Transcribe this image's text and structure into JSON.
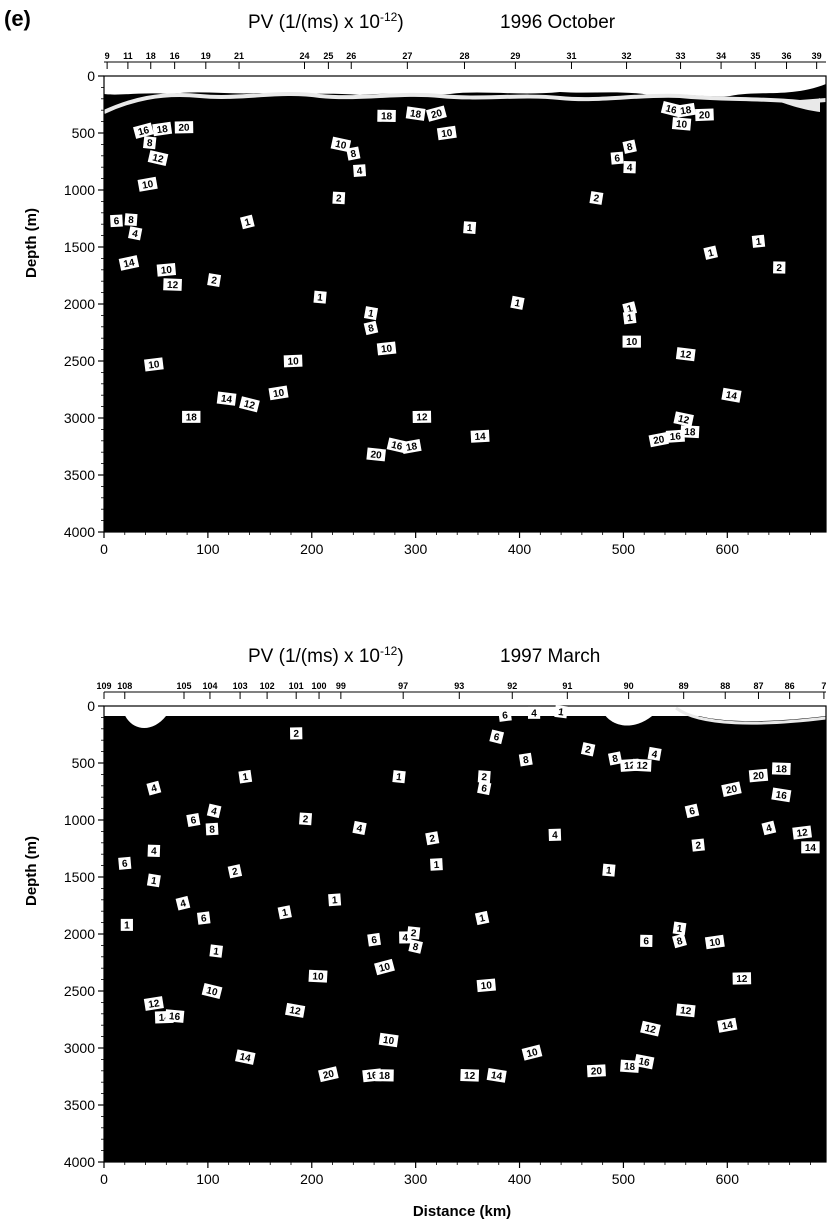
{
  "panel_label": "(e)",
  "colors": {
    "background": "#ffffff",
    "field": "#000000",
    "label_box": "#ffffff",
    "surface_band": "#e9e9e9"
  },
  "chart_data": [
    {
      "type": "contour",
      "title": "PV (1/(ms) x 10",
      "title_exponent": "-12",
      "title_close": ")",
      "subtitle": "1996 October",
      "xlabel": "",
      "ylabel": "Depth (m)",
      "xlim": [
        0,
        695
      ],
      "ylim": [
        4000,
        0
      ],
      "x_ticks": [
        0,
        100,
        200,
        300,
        400,
        500,
        600
      ],
      "y_ticks": [
        0,
        500,
        1000,
        1500,
        2000,
        2500,
        3000,
        3500,
        4000
      ],
      "stations": [
        {
          "label": "9",
          "x": 3
        },
        {
          "label": "11",
          "x": 23
        },
        {
          "label": "18",
          "x": 45
        },
        {
          "label": "16",
          "x": 68
        },
        {
          "label": "19",
          "x": 98
        },
        {
          "label": "21",
          "x": 130
        },
        {
          "label": "24",
          "x": 193
        },
        {
          "label": "25",
          "x": 216
        },
        {
          "label": "26",
          "x": 238
        },
        {
          "label": "27",
          "x": 292
        },
        {
          "label": "28",
          "x": 347
        },
        {
          "label": "29",
          "x": 396
        },
        {
          "label": "31",
          "x": 450
        },
        {
          "label": "32",
          "x": 503
        },
        {
          "label": "33",
          "x": 555
        },
        {
          "label": "34",
          "x": 594
        },
        {
          "label": "35",
          "x": 627
        },
        {
          "label": "36",
          "x": 657
        },
        {
          "label": "39",
          "x": 686
        }
      ],
      "contour_labels": [
        {
          "text": "16",
          "x": 38,
          "y": 480
        },
        {
          "text": "18",
          "x": 56,
          "y": 465
        },
        {
          "text": "20",
          "x": 77,
          "y": 450
        },
        {
          "text": "8",
          "x": 44,
          "y": 585
        },
        {
          "text": "12",
          "x": 52,
          "y": 720
        },
        {
          "text": "10",
          "x": 42,
          "y": 950
        },
        {
          "text": "6",
          "x": 12,
          "y": 1270
        },
        {
          "text": "8",
          "x": 26,
          "y": 1260
        },
        {
          "text": "4",
          "x": 30,
          "y": 1380
        },
        {
          "text": "14",
          "x": 24,
          "y": 1640
        },
        {
          "text": "10",
          "x": 60,
          "y": 1700
        },
        {
          "text": "12",
          "x": 66,
          "y": 1830
        },
        {
          "text": "2",
          "x": 106,
          "y": 1790
        },
        {
          "text": "1",
          "x": 138,
          "y": 1280
        },
        {
          "text": "10",
          "x": 48,
          "y": 2530
        },
        {
          "text": "18",
          "x": 84,
          "y": 2990
        },
        {
          "text": "14",
          "x": 118,
          "y": 2830
        },
        {
          "text": "12",
          "x": 140,
          "y": 2880
        },
        {
          "text": "10",
          "x": 168,
          "y": 2780
        },
        {
          "text": "10",
          "x": 182,
          "y": 2500
        },
        {
          "text": "1",
          "x": 208,
          "y": 1940
        },
        {
          "text": "10",
          "x": 228,
          "y": 600
        },
        {
          "text": "8",
          "x": 240,
          "y": 680
        },
        {
          "text": "4",
          "x": 246,
          "y": 830
        },
        {
          "text": "2",
          "x": 226,
          "y": 1070
        },
        {
          "text": "1",
          "x": 257,
          "y": 2080
        },
        {
          "text": "8",
          "x": 257,
          "y": 2210
        },
        {
          "text": "10",
          "x": 272,
          "y": 2390
        },
        {
          "text": "18",
          "x": 272,
          "y": 350
        },
        {
          "text": "18",
          "x": 300,
          "y": 330
        },
        {
          "text": "20",
          "x": 320,
          "y": 330
        },
        {
          "text": "10",
          "x": 330,
          "y": 500
        },
        {
          "text": "12",
          "x": 306,
          "y": 2990
        },
        {
          "text": "20",
          "x": 262,
          "y": 3320
        },
        {
          "text": "16",
          "x": 282,
          "y": 3240
        },
        {
          "text": "18",
          "x": 296,
          "y": 3250
        },
        {
          "text": "14",
          "x": 362,
          "y": 3160
        },
        {
          "text": "1",
          "x": 352,
          "y": 1330
        },
        {
          "text": "1",
          "x": 398,
          "y": 1990
        },
        {
          "text": "8",
          "x": 506,
          "y": 620
        },
        {
          "text": "6",
          "x": 494,
          "y": 720
        },
        {
          "text": "4",
          "x": 506,
          "y": 800
        },
        {
          "text": "2",
          "x": 474,
          "y": 1070
        },
        {
          "text": "1",
          "x": 506,
          "y": 2040
        },
        {
          "text": "1",
          "x": 506,
          "y": 2120
        },
        {
          "text": "10",
          "x": 508,
          "y": 2330
        },
        {
          "text": "12",
          "x": 560,
          "y": 2440
        },
        {
          "text": "16",
          "x": 546,
          "y": 290
        },
        {
          "text": "18",
          "x": 560,
          "y": 300
        },
        {
          "text": "20",
          "x": 578,
          "y": 340
        },
        {
          "text": "10",
          "x": 556,
          "y": 420
        },
        {
          "text": "12",
          "x": 558,
          "y": 3010
        },
        {
          "text": "20",
          "x": 534,
          "y": 3190
        },
        {
          "text": "16",
          "x": 550,
          "y": 3160
        },
        {
          "text": "18",
          "x": 564,
          "y": 3120
        },
        {
          "text": "14",
          "x": 604,
          "y": 2800
        },
        {
          "text": "1",
          "x": 584,
          "y": 1550
        },
        {
          "text": "1",
          "x": 630,
          "y": 1450
        },
        {
          "text": "2",
          "x": 650,
          "y": 1680
        }
      ]
    },
    {
      "type": "contour",
      "title": "PV (1/(ms) x 10",
      "title_exponent": "-12",
      "title_close": ")",
      "subtitle": "1997 March",
      "xlabel": "Distance (km)",
      "ylabel": "Depth (m)",
      "xlim": [
        0,
        695
      ],
      "ylim": [
        4000,
        0
      ],
      "x_ticks": [
        0,
        100,
        200,
        300,
        400,
        500,
        600
      ],
      "y_ticks": [
        0,
        500,
        1000,
        1500,
        2000,
        2500,
        3000,
        3500,
        4000
      ],
      "stations": [
        {
          "label": "109",
          "x": 0
        },
        {
          "label": "108",
          "x": 20
        },
        {
          "label": "105",
          "x": 77
        },
        {
          "label": "104",
          "x": 102
        },
        {
          "label": "103",
          "x": 131
        },
        {
          "label": "102",
          "x": 157
        },
        {
          "label": "101",
          "x": 185
        },
        {
          "label": "100",
          "x": 207
        },
        {
          "label": "99",
          "x": 228
        },
        {
          "label": "97",
          "x": 288
        },
        {
          "label": "93",
          "x": 342
        },
        {
          "label": "92",
          "x": 393
        },
        {
          "label": "91",
          "x": 446
        },
        {
          "label": "90",
          "x": 505
        },
        {
          "label": "89",
          "x": 558
        },
        {
          "label": "88",
          "x": 598
        },
        {
          "label": "87",
          "x": 630
        },
        {
          "label": "86",
          "x": 660
        },
        {
          "label": "7",
          "x": 693
        }
      ],
      "contour_labels": [
        {
          "text": "4",
          "x": 48,
          "y": 720
        },
        {
          "text": "1",
          "x": 136,
          "y": 620
        },
        {
          "text": "2",
          "x": 185,
          "y": 240
        },
        {
          "text": "1",
          "x": 284,
          "y": 620
        },
        {
          "text": "4",
          "x": 106,
          "y": 920
        },
        {
          "text": "6",
          "x": 86,
          "y": 1000
        },
        {
          "text": "8",
          "x": 104,
          "y": 1080
        },
        {
          "text": "2",
          "x": 194,
          "y": 990
        },
        {
          "text": "4",
          "x": 246,
          "y": 1070
        },
        {
          "text": "2",
          "x": 126,
          "y": 1450
        },
        {
          "text": "6",
          "x": 20,
          "y": 1380
        },
        {
          "text": "4",
          "x": 48,
          "y": 1270
        },
        {
          "text": "1",
          "x": 48,
          "y": 1530
        },
        {
          "text": "4",
          "x": 76,
          "y": 1730
        },
        {
          "text": "6",
          "x": 96,
          "y": 1860
        },
        {
          "text": "1",
          "x": 22,
          "y": 1920
        },
        {
          "text": "1",
          "x": 108,
          "y": 2150
        },
        {
          "text": "10",
          "x": 104,
          "y": 2500
        },
        {
          "text": "12",
          "x": 48,
          "y": 2610
        },
        {
          "text": "14",
          "x": 58,
          "y": 2730
        },
        {
          "text": "16",
          "x": 68,
          "y": 2720
        },
        {
          "text": "14",
          "x": 136,
          "y": 3080
        },
        {
          "text": "1",
          "x": 174,
          "y": 1810
        },
        {
          "text": "1",
          "x": 222,
          "y": 1700
        },
        {
          "text": "10",
          "x": 206,
          "y": 2370
        },
        {
          "text": "12",
          "x": 184,
          "y": 2670
        },
        {
          "text": "20",
          "x": 216,
          "y": 3230
        },
        {
          "text": "16",
          "x": 258,
          "y": 3240
        },
        {
          "text": "18",
          "x": 270,
          "y": 3240
        },
        {
          "text": "10",
          "x": 274,
          "y": 2930
        },
        {
          "text": "10",
          "x": 270,
          "y": 2290
        },
        {
          "text": "6",
          "x": 260,
          "y": 2050
        },
        {
          "text": "4",
          "x": 290,
          "y": 2030
        },
        {
          "text": "2",
          "x": 298,
          "y": 1990
        },
        {
          "text": "8",
          "x": 300,
          "y": 2110
        },
        {
          "text": "2",
          "x": 316,
          "y": 1160
        },
        {
          "text": "1",
          "x": 320,
          "y": 1390
        },
        {
          "text": "2",
          "x": 366,
          "y": 620
        },
        {
          "text": "6",
          "x": 366,
          "y": 720
        },
        {
          "text": "1",
          "x": 364,
          "y": 1860
        },
        {
          "text": "10",
          "x": 368,
          "y": 2450
        },
        {
          "text": "12",
          "x": 352,
          "y": 3240
        },
        {
          "text": "14",
          "x": 378,
          "y": 3240
        },
        {
          "text": "10",
          "x": 412,
          "y": 3040
        },
        {
          "text": "6",
          "x": 386,
          "y": 80
        },
        {
          "text": "4",
          "x": 414,
          "y": 60
        },
        {
          "text": "1",
          "x": 440,
          "y": 50
        },
        {
          "text": "6",
          "x": 378,
          "y": 270
        },
        {
          "text": "8",
          "x": 406,
          "y": 470
        },
        {
          "text": "4",
          "x": 434,
          "y": 1130
        },
        {
          "text": "1",
          "x": 486,
          "y": 1440
        },
        {
          "text": "2",
          "x": 466,
          "y": 380
        },
        {
          "text": "8",
          "x": 492,
          "y": 460
        },
        {
          "text": "12",
          "x": 506,
          "y": 520
        },
        {
          "text": "12",
          "x": 518,
          "y": 520
        },
        {
          "text": "4",
          "x": 530,
          "y": 420
        },
        {
          "text": "6",
          "x": 566,
          "y": 920
        },
        {
          "text": "2",
          "x": 572,
          "y": 1220
        },
        {
          "text": "6",
          "x": 522,
          "y": 2060
        },
        {
          "text": "1",
          "x": 554,
          "y": 1950
        },
        {
          "text": "8",
          "x": 554,
          "y": 2060
        },
        {
          "text": "10",
          "x": 588,
          "y": 2070
        },
        {
          "text": "12",
          "x": 614,
          "y": 2390
        },
        {
          "text": "12",
          "x": 560,
          "y": 2670
        },
        {
          "text": "12",
          "x": 526,
          "y": 2830
        },
        {
          "text": "14",
          "x": 600,
          "y": 2800
        },
        {
          "text": "20",
          "x": 474,
          "y": 3200
        },
        {
          "text": "18",
          "x": 506,
          "y": 3160
        },
        {
          "text": "16",
          "x": 520,
          "y": 3120
        },
        {
          "text": "20",
          "x": 604,
          "y": 730
        },
        {
          "text": "20",
          "x": 630,
          "y": 610
        },
        {
          "text": "18",
          "x": 652,
          "y": 550
        },
        {
          "text": "16",
          "x": 652,
          "y": 780
        },
        {
          "text": "4",
          "x": 640,
          "y": 1070
        },
        {
          "text": "12",
          "x": 672,
          "y": 1110
        },
        {
          "text": "14",
          "x": 680,
          "y": 1240
        }
      ]
    }
  ]
}
